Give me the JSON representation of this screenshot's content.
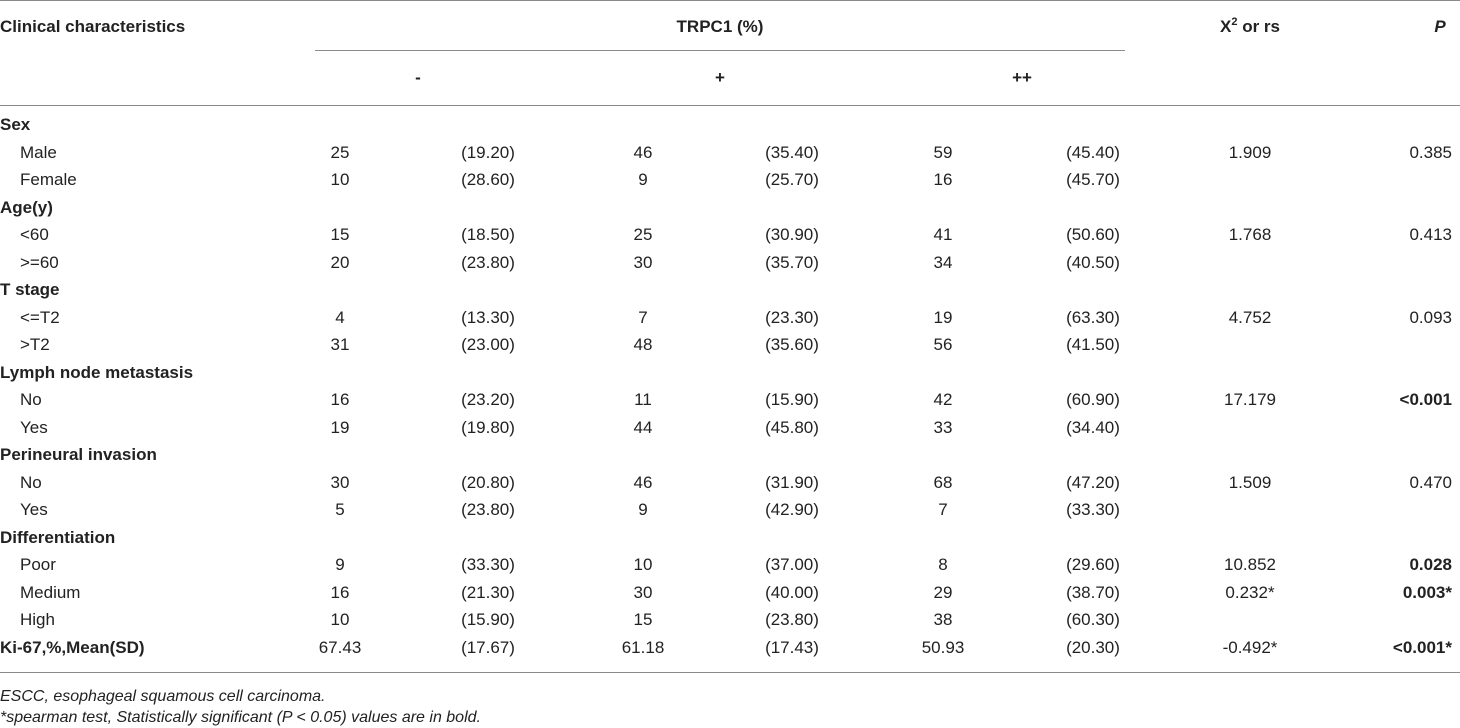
{
  "header": {
    "characteristics": "Clinical characteristics",
    "group": "TRPC1 (%)",
    "stat": {
      "symbol": "X",
      "sup": "2",
      "rest": " or rs"
    },
    "p": "P"
  },
  "subheader": [
    "-",
    "+",
    "++"
  ],
  "sections": [
    {
      "title": "Sex",
      "rows": [
        {
          "label": "Male",
          "cells": [
            "25",
            "(19.20)",
            "46",
            "(35.40)",
            "59",
            "(45.40)"
          ],
          "stat": "1.909",
          "p": {
            "text": "0.385",
            "bold": false
          }
        },
        {
          "label": "Female",
          "cells": [
            "10",
            "(28.60)",
            "9",
            "(25.70)",
            "16",
            "(45.70)"
          ]
        }
      ]
    },
    {
      "title": "Age(y)",
      "rows": [
        {
          "label": "<60",
          "cells": [
            "15",
            "(18.50)",
            "25",
            "(30.90)",
            "41",
            "(50.60)"
          ],
          "stat": "1.768",
          "p": {
            "text": "0.413",
            "bold": false
          }
        },
        {
          "label": ">=60",
          "cells": [
            "20",
            "(23.80)",
            "30",
            "(35.70)",
            "34",
            "(40.50)"
          ]
        }
      ]
    },
    {
      "title": "T stage",
      "rows": [
        {
          "label": "<=T2",
          "cells": [
            "4",
            "(13.30)",
            "7",
            "(23.30)",
            "19",
            "(63.30)"
          ],
          "stat": "4.752",
          "p": {
            "text": "0.093",
            "bold": false
          }
        },
        {
          "label": ">T2",
          "cells": [
            "31",
            "(23.00)",
            "48",
            "(35.60)",
            "56",
            "(41.50)"
          ]
        }
      ]
    },
    {
      "title": "Lymph node metastasis",
      "rows": [
        {
          "label": "No",
          "cells": [
            "16",
            "(23.20)",
            "11",
            "(15.90)",
            "42",
            "(60.90)"
          ],
          "stat": "17.179",
          "p": {
            "text": "<0.001",
            "bold": true
          }
        },
        {
          "label": "Yes",
          "cells": [
            "19",
            "(19.80)",
            "44",
            "(45.80)",
            "33",
            "(34.40)"
          ]
        }
      ]
    },
    {
      "title": "Perineural invasion",
      "rows": [
        {
          "label": "No",
          "cells": [
            "30",
            "(20.80)",
            "46",
            "(31.90)",
            "68",
            "(47.20)"
          ],
          "stat": "1.509",
          "p": {
            "text": "0.470",
            "bold": false
          }
        },
        {
          "label": "Yes",
          "cells": [
            "5",
            "(23.80)",
            "9",
            "(42.90)",
            "7",
            "(33.30)"
          ]
        }
      ]
    },
    {
      "title": "Differentiation",
      "rows": [
        {
          "label": "Poor",
          "cells": [
            "9",
            "(33.30)",
            "10",
            "(37.00)",
            "8",
            "(29.60)"
          ],
          "stat": "10.852",
          "p": {
            "text": "0.028",
            "bold": true
          }
        },
        {
          "label": "Medium",
          "cells": [
            "16",
            "(21.30)",
            "30",
            "(40.00)",
            "29",
            "(38.70)"
          ],
          "stat": "0.232*",
          "p": {
            "text": "0.003*",
            "bold": true
          }
        },
        {
          "label": "High",
          "cells": [
            "10",
            "(15.90)",
            "15",
            "(23.80)",
            "38",
            "(60.30)"
          ]
        }
      ]
    },
    {
      "title": "Ki-67,%,Mean(SD)",
      "cells": [
        "67.43",
        "(17.67)",
        "61.18",
        "(17.43)",
        "50.93",
        "(20.30)"
      ],
      "stat": "-0.492*",
      "p": {
        "text": "<0.001*",
        "bold": true
      }
    }
  ],
  "footnotes": [
    "ESCC, esophageal squamous cell carcinoma.",
    "*spearman test, Statistically significant (P < 0.05) values are in bold."
  ]
}
